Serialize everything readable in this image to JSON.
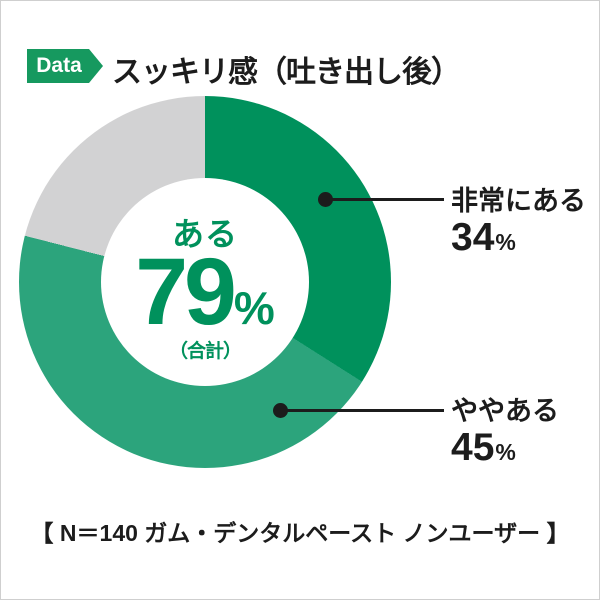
{
  "header": {
    "badge_label": "Data",
    "title": "スッキリ感（吐き出し後）"
  },
  "chart_data": {
    "type": "pie",
    "donut": true,
    "title": "スッキリ感（吐き出し後）",
    "start_angle_deg": 0,
    "direction": "clockwise",
    "segments": [
      {
        "label": "非常にある",
        "value": 34,
        "unit": "%",
        "color": "#00915C"
      },
      {
        "label": "ややある",
        "value": 45,
        "unit": "%",
        "color": "#2CA47C"
      },
      {
        "label": "",
        "value": 21,
        "unit": "%",
        "color": "#D2D2D3"
      }
    ],
    "center": {
      "label": "ある",
      "value": "79",
      "unit": "%",
      "note": "（合計）"
    },
    "legend_position": "right-callouts"
  },
  "callouts": [
    {
      "label": "非常にある",
      "value": "34",
      "unit": "%"
    },
    {
      "label": "ややある",
      "value": "45",
      "unit": "%"
    }
  ],
  "footer": {
    "caption": "【 N＝140 ガム・デンタルペースト ノンユーザー 】"
  },
  "colors": {
    "segment_dark_green": "#00915C",
    "segment_mid_green": "#2CA47C",
    "segment_remainder_gray": "#D2D2D3",
    "badge_green": "#16995F",
    "center_text_green": "#00915C",
    "text_black": "#1C1C1C"
  }
}
